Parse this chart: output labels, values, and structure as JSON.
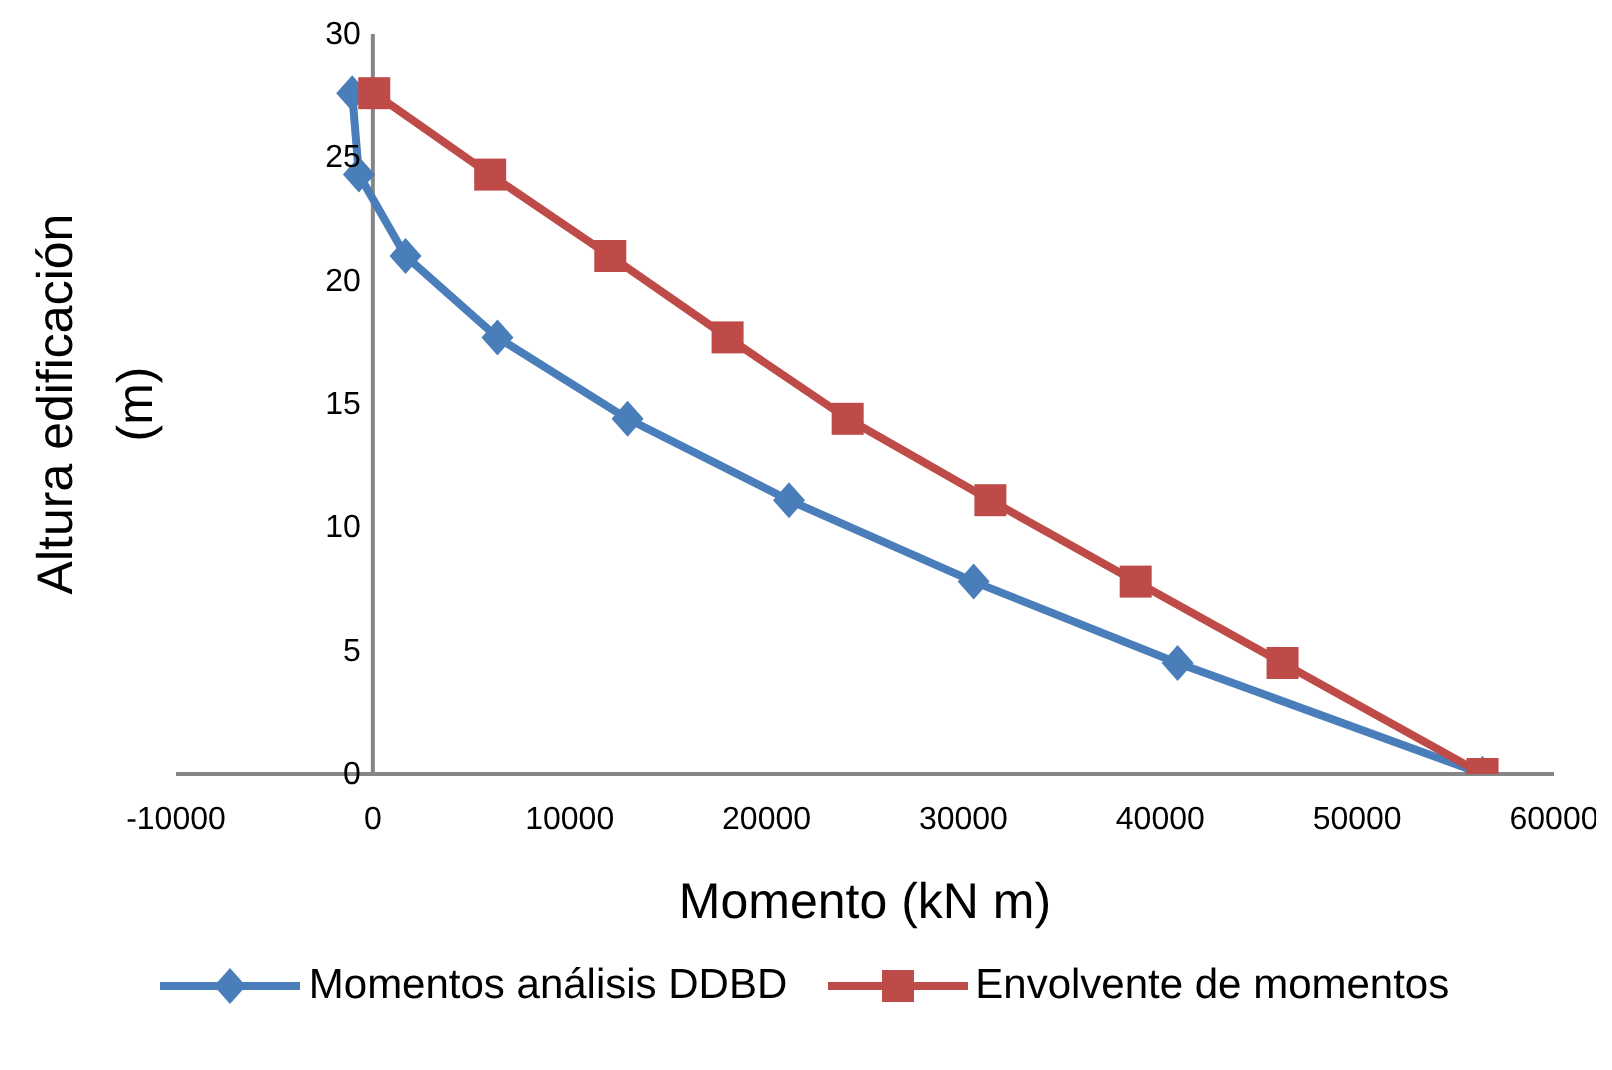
{
  "chart_data": {
    "type": "line",
    "xlabel": "Momento (kN m)",
    "ylabel": "Altura edificación (m)",
    "xlim": [
      -10000,
      60000
    ],
    "xticks": [
      -10000,
      0,
      10000,
      20000,
      30000,
      40000,
      50000,
      60000
    ],
    "ylim": [
      0,
      30
    ],
    "yticks": [
      0,
      5,
      10,
      15,
      20,
      25,
      30
    ],
    "grid": false,
    "legend": "bottom",
    "series": [
      {
        "name": "Momentos análisis DDBD",
        "color": "#4a7ebb",
        "marker": "diamond",
        "x": [
          -1050,
          -710,
          1660,
          6330,
          12940,
          21140,
          30520,
          40880,
          56370
        ],
        "values": [
          27.6,
          24.3,
          21.0,
          17.7,
          14.4,
          11.1,
          7.8,
          4.5,
          0
        ]
      },
      {
        "name": "Envolvente de momentos",
        "color": "#be4b48",
        "marker": "square",
        "x": [
          70,
          5960,
          12060,
          18020,
          24120,
          31370,
          38750,
          46210,
          56370
        ],
        "values": [
          27.6,
          24.3,
          21.0,
          17.7,
          14.4,
          11.1,
          7.8,
          4.5,
          0
        ]
      }
    ]
  }
}
